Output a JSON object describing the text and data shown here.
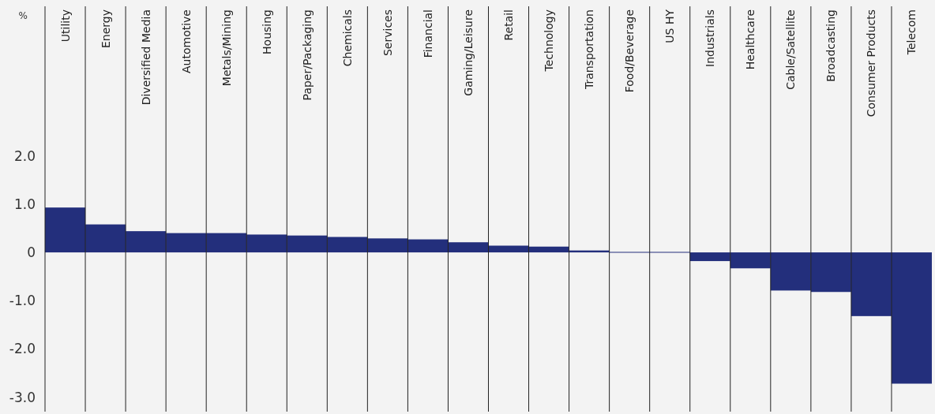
{
  "chart_data": {
    "type": "bar",
    "ylabel": "%",
    "categories": [
      "Utility",
      "Energy",
      "Diversified Media",
      "Automotive",
      "Metals/Mining",
      "Housing",
      "Paper/Packaging",
      "Chemicals",
      "Services",
      "Financial",
      "Gaming/Leisure",
      "Retail",
      "Technology",
      "Transportation",
      "Food/Beverage",
      "US HY",
      "Industrials",
      "Healthcare",
      "Cable/Satellite",
      "Broadcasting",
      "Consumer Products",
      "Telecom"
    ],
    "values": [
      0.93,
      0.58,
      0.44,
      0.4,
      0.4,
      0.37,
      0.35,
      0.32,
      0.29,
      0.27,
      0.21,
      0.14,
      0.12,
      0.04,
      0.01,
      0.01,
      -0.18,
      -0.33,
      -0.79,
      -0.82,
      -1.32,
      -2.72
    ],
    "color": "#232f7c",
    "ylim": [
      -3.3,
      5.1
    ],
    "yticks": [
      {
        "value": -3,
        "label": "-3.0"
      },
      {
        "value": -2,
        "label": "-2.0"
      },
      {
        "value": -1,
        "label": "-1.0"
      },
      0,
      {
        "value": 1,
        "label": "1.0"
      },
      {
        "value": 2,
        "label": "2.0"
      }
    ],
    "grid": "x"
  }
}
